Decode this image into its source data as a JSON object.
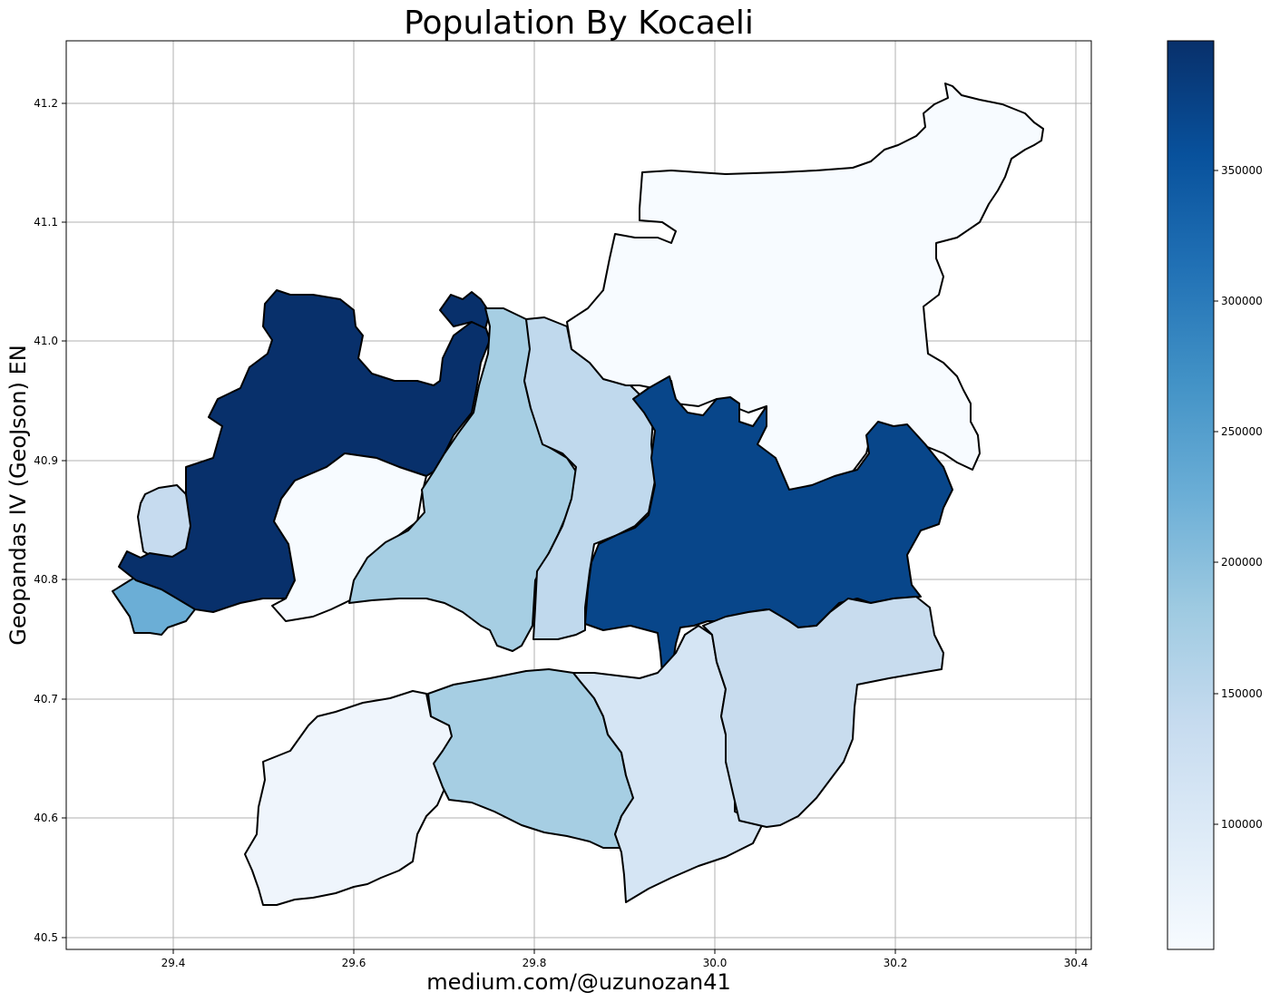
{
  "chart_data": {
    "type": "choropleth",
    "title": "Population By Kocaeli",
    "xlabel": "medium.com/@uzunozan41",
    "ylabel": "Geopandas IV (GeoJson) EN",
    "xlim": [
      29.28,
      30.42
    ],
    "ylim": [
      40.49,
      41.255
    ],
    "x_ticks": [
      "29.4",
      "29.6",
      "29.8",
      "30.0",
      "30.2",
      "30.4"
    ],
    "y_ticks": [
      "40.5",
      "40.6",
      "40.7",
      "40.8",
      "40.9",
      "41.0",
      "41.1",
      "41.2"
    ],
    "grid": true,
    "colormap": "Blues",
    "colorbar": {
      "min": 48000,
      "max": 397000,
      "ticks": [
        "100000",
        "150000",
        "200000",
        "250000",
        "300000",
        "350000"
      ],
      "colors": [
        "#f7fbff",
        "#deebf7",
        "#c6dbef",
        "#9ecae1",
        "#6baed6",
        "#4292c6",
        "#2171b5",
        "#08519c",
        "#08306b"
      ]
    },
    "districts": [
      {
        "population": 110000,
        "color": "#c6dbef"
      },
      {
        "population": 397000,
        "color": "#08306b"
      },
      {
        "population": 215000,
        "color": "#6baed6"
      },
      {
        "population": 52000,
        "color": "#f7fbff"
      },
      {
        "population": 397000,
        "color": "#08306b"
      },
      {
        "population": 165000,
        "color": "#a6cee3"
      },
      {
        "population": 125000,
        "color": "#c0d9ed"
      },
      {
        "population": 50000,
        "color": "#f7fbff"
      },
      {
        "population": 365000,
        "color": "#08468a"
      },
      {
        "population": 62000,
        "color": "#eff5fc"
      },
      {
        "population": 170000,
        "color": "#a6cee3"
      },
      {
        "population": 95000,
        "color": "#d5e5f4"
      },
      {
        "population": 118000,
        "color": "#c8dcee"
      }
    ]
  }
}
